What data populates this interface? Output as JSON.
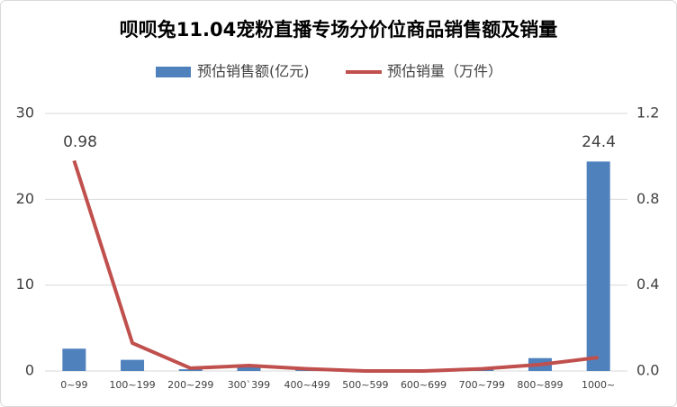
{
  "chart_data": {
    "type": "bar-line",
    "title": "呗呗兔11.04宠粉直播专场分价位商品销售额及销量",
    "categories": [
      "0~99",
      "100~199",
      "200~299",
      "300`399",
      "400~499",
      "500~599",
      "600~699",
      "700~799",
      "800~899",
      "1000~"
    ],
    "series": [
      {
        "name": "预估销售额(亿元)",
        "type": "bar",
        "color": "#4f81bd",
        "values": [
          2.6,
          1.3,
          0.2,
          0.5,
          0.1,
          0,
          0,
          0.3,
          1.5,
          24.4
        ],
        "value_labels": [
          null,
          null,
          null,
          null,
          null,
          null,
          null,
          null,
          null,
          "24.4"
        ]
      },
      {
        "name": "预估销量（万件）",
        "type": "line",
        "axis": "y2",
        "color": "#c0504d",
        "values": [
          0.98,
          0.13,
          0.013,
          0.025,
          0.01,
          0,
          0,
          0.01,
          0.03,
          0.063
        ],
        "value_labels": [
          "0.98",
          null,
          null,
          null,
          null,
          null,
          null,
          null,
          null,
          null
        ]
      }
    ],
    "ylim": [
      0,
      30
    ],
    "yticks": [
      0,
      10,
      20,
      30
    ],
    "y2lim": [
      0,
      1.2
    ],
    "y2ticks": [
      {
        "value": 0,
        "label": "0.0"
      },
      0.4,
      0.8,
      1.2
    ],
    "grid": true,
    "legend": "top"
  }
}
